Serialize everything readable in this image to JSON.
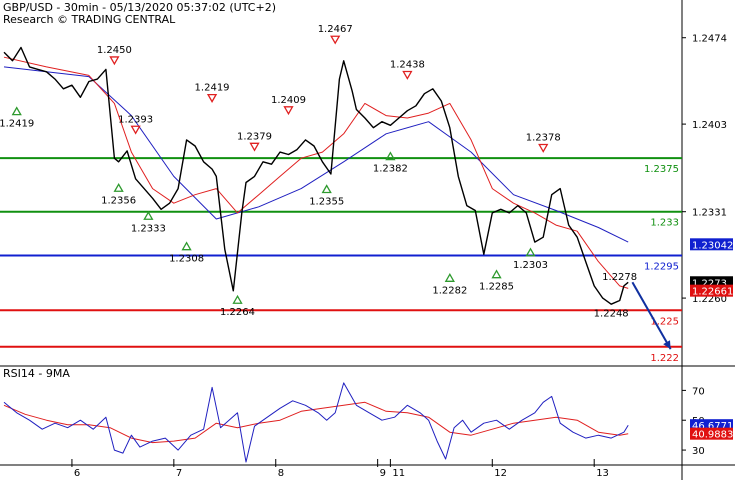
{
  "header": {
    "line1": "GBP/USD - 30min - 05/13/2020 05:37:02 (UTC+2)",
    "line2": "Research © TRADING CENTRAL"
  },
  "colors": {
    "up_arrow": "#2e9a2e",
    "down_arrow": "#e02020",
    "green_level": "#109010",
    "blue_level": "#1020d0",
    "red_level": "#e01010",
    "ma_red": "#e02020",
    "ma_blue": "#2020c0",
    "price": "#000000",
    "forecast_arrow": "#1030a0"
  },
  "chart_data": [
    {
      "type": "line",
      "title": "GBP/USD - 30min",
      "ylim": [
        1.2205,
        1.2505
      ],
      "y_ticks": [
        "1.2474",
        "1.2403",
        "1.2331",
        "1.2260"
      ],
      "y_tick_values": [
        1.2474,
        1.2403,
        1.2331,
        1.226
      ],
      "x_ticks": [
        "6",
        "7",
        "8",
        "9",
        "11",
        "12",
        "13"
      ],
      "x_tick_bars": [
        32,
        80,
        128,
        176,
        182,
        230,
        278
      ],
      "bars_total": 310,
      "series": [
        {
          "role": "price",
          "bar": [
            0,
            4,
            8,
            12,
            16,
            20,
            24,
            28,
            32,
            36,
            40,
            44,
            48,
            52,
            54,
            58,
            62,
            66,
            70,
            74,
            78,
            82,
            86,
            90,
            94,
            98,
            100,
            104,
            108,
            112,
            114,
            118,
            122,
            126,
            130,
            134,
            138,
            142,
            146,
            150,
            154,
            158,
            160,
            164,
            166,
            170,
            174,
            178,
            182,
            186,
            190,
            194,
            198,
            202,
            206,
            210,
            214,
            218,
            222,
            226,
            230,
            234,
            238,
            242,
            246,
            250,
            254,
            258,
            262,
            266,
            270,
            274,
            278,
            282,
            286,
            290,
            292,
            294
          ],
          "values": [
            1.2462,
            1.2455,
            1.2466,
            1.245,
            1.2448,
            1.2446,
            1.244,
            1.2432,
            1.2435,
            1.2425,
            1.2438,
            1.244,
            1.2448,
            1.2375,
            1.2372,
            1.2381,
            1.2358,
            1.235,
            1.2342,
            1.2333,
            1.2338,
            1.235,
            1.239,
            1.2385,
            1.2372,
            1.2366,
            1.236,
            1.23,
            1.2266,
            1.233,
            1.2355,
            1.236,
            1.2372,
            1.237,
            1.238,
            1.2378,
            1.2382,
            1.239,
            1.2385,
            1.2372,
            1.2362,
            1.244,
            1.2455,
            1.243,
            1.2415,
            1.2408,
            1.24,
            1.2405,
            1.2402,
            1.2408,
            1.2414,
            1.2418,
            1.2428,
            1.2432,
            1.2422,
            1.24,
            1.236,
            1.2336,
            1.2332,
            1.2296,
            1.233,
            1.2333,
            1.233,
            1.2336,
            1.233,
            1.2306,
            1.231,
            1.2345,
            1.235,
            1.232,
            1.231,
            1.229,
            1.227,
            1.226,
            1.2255,
            1.2258,
            1.227,
            1.2273
          ]
        },
        {
          "role": "ma-red",
          "bar": [
            0,
            20,
            40,
            52,
            60,
            70,
            80,
            90,
            100,
            110,
            120,
            130,
            140,
            150,
            160,
            170,
            180,
            190,
            200,
            210,
            220,
            230,
            240,
            250,
            260,
            270,
            280,
            290,
            294
          ],
          "values": [
            1.2458,
            1.245,
            1.2443,
            1.242,
            1.238,
            1.235,
            1.2338,
            1.2345,
            1.235,
            1.233,
            1.2345,
            1.236,
            1.2375,
            1.238,
            1.2395,
            1.242,
            1.241,
            1.2408,
            1.2412,
            1.242,
            1.239,
            1.235,
            1.2338,
            1.233,
            1.232,
            1.2315,
            1.229,
            1.227,
            1.2268
          ]
        },
        {
          "role": "ma-blue",
          "bar": [
            0,
            20,
            40,
            60,
            80,
            100,
            120,
            140,
            160,
            180,
            200,
            220,
            240,
            260,
            280,
            294
          ],
          "values": [
            1.245,
            1.2446,
            1.2442,
            1.241,
            1.236,
            1.2325,
            1.2335,
            1.235,
            1.2372,
            1.2395,
            1.2405,
            1.238,
            1.2345,
            1.2332,
            1.2318,
            1.2306
          ]
        }
      ],
      "forecast": {
        "from_bar": 296,
        "from": 1.2273,
        "to_bar": 314,
        "to": 1.2218
      },
      "levels": [
        {
          "value": 1.2375,
          "label": "1.2375",
          "kind": "green"
        },
        {
          "value": 1.2331,
          "label": "1.233",
          "kind": "green"
        },
        {
          "value": 1.2295,
          "label": "1.2295",
          "kind": "blue"
        },
        {
          "value": 1.225,
          "label": "1.225",
          "kind": "red"
        },
        {
          "value": 1.222,
          "label": "1.222",
          "kind": "red"
        }
      ],
      "tags": [
        {
          "value": 1.23042,
          "label": "1.23042",
          "color": "#1020d0"
        },
        {
          "value": 1.2273,
          "label": "1.2273",
          "color": "#000000"
        },
        {
          "value": 1.22661,
          "label": "1.22661",
          "color": "#e01010"
        }
      ],
      "annotations": [
        {
          "bar": 6,
          "value": 1.2419,
          "label": "1.2419",
          "marker": "up"
        },
        {
          "bar": 52,
          "value": 1.245,
          "label": "1.2450",
          "marker": "down"
        },
        {
          "bar": 62,
          "value": 1.2393,
          "label": "1.2393",
          "marker": "down"
        },
        {
          "bar": 54,
          "value": 1.2356,
          "label": "1.2356",
          "marker": "up"
        },
        {
          "bar": 68,
          "value": 1.2333,
          "label": "1.2333",
          "marker": "up"
        },
        {
          "bar": 86,
          "value": 1.2308,
          "label": "1.2308",
          "marker": "up"
        },
        {
          "bar": 98,
          "value": 1.2419,
          "label": "1.2419",
          "marker": "down"
        },
        {
          "bar": 110,
          "value": 1.2264,
          "label": "1.2264",
          "marker": "up"
        },
        {
          "bar": 118,
          "value": 1.2379,
          "label": "1.2379",
          "marker": "down"
        },
        {
          "bar": 134,
          "value": 1.2409,
          "label": "1.2409",
          "marker": "down"
        },
        {
          "bar": 152,
          "value": 1.2355,
          "label": "1.2355",
          "marker": "up"
        },
        {
          "bar": 156,
          "value": 1.2467,
          "label": "1.2467",
          "marker": "down"
        },
        {
          "bar": 182,
          "value": 1.2382,
          "label": "1.2382",
          "marker": "up"
        },
        {
          "bar": 190,
          "value": 1.2438,
          "label": "1.2438",
          "marker": "down"
        },
        {
          "bar": 210,
          "value": 1.2282,
          "label": "1.2282",
          "marker": "up"
        },
        {
          "bar": 232,
          "value": 1.2285,
          "label": "1.2285",
          "marker": "up"
        },
        {
          "bar": 248,
          "value": 1.2303,
          "label": "1.2303",
          "marker": "up"
        },
        {
          "bar": 254,
          "value": 1.2378,
          "label": "1.2378",
          "marker": "down"
        },
        {
          "bar": 290,
          "value": 1.2278,
          "label": "1.2278",
          "marker": "none"
        },
        {
          "bar": 286,
          "value": 1.2248,
          "label": "1.2248",
          "marker": "none"
        }
      ]
    },
    {
      "type": "line",
      "title": "RSI14 - 9MA",
      "ylim": [
        20,
        85
      ],
      "y_ticks": [
        "70",
        "50",
        "30"
      ],
      "y_tick_values": [
        70,
        50,
        30
      ],
      "tags": [
        {
          "value": 46.6771,
          "label": "46.6771",
          "color": "#1020d0"
        },
        {
          "value": 40.9883,
          "label": "40.9883",
          "color": "#e01010"
        }
      ],
      "series": [
        {
          "role": "rsi",
          "bar": [
            0,
            6,
            12,
            18,
            24,
            30,
            36,
            42,
            48,
            52,
            56,
            60,
            64,
            70,
            76,
            82,
            88,
            94,
            98,
            102,
            106,
            110,
            114,
            118,
            124,
            130,
            136,
            142,
            148,
            152,
            156,
            160,
            166,
            172,
            178,
            184,
            190,
            196,
            200,
            204,
            208,
            212,
            216,
            220,
            226,
            232,
            238,
            244,
            250,
            254,
            258,
            262,
            268,
            274,
            280,
            286,
            292,
            294
          ],
          "values": [
            62,
            55,
            50,
            44,
            48,
            45,
            50,
            44,
            52,
            30,
            28,
            40,
            32,
            36,
            38,
            30,
            40,
            44,
            72,
            45,
            50,
            55,
            22,
            46,
            52,
            58,
            63,
            60,
            55,
            50,
            55,
            75,
            60,
            55,
            50,
            52,
            60,
            55,
            50,
            36,
            24,
            45,
            50,
            42,
            48,
            50,
            44,
            50,
            55,
            62,
            66,
            48,
            42,
            38,
            40,
            38,
            42,
            46.68
          ]
        },
        {
          "role": "ma",
          "bar": [
            0,
            10,
            20,
            30,
            40,
            50,
            60,
            70,
            80,
            90,
            100,
            110,
            120,
            130,
            140,
            150,
            160,
            170,
            180,
            190,
            200,
            210,
            220,
            230,
            240,
            250,
            260,
            270,
            280,
            290,
            294
          ],
          "values": [
            60,
            54,
            50,
            47,
            47,
            45,
            38,
            35,
            36,
            38,
            48,
            45,
            48,
            50,
            56,
            58,
            60,
            62,
            56,
            55,
            52,
            42,
            40,
            44,
            48,
            50,
            52,
            50,
            42,
            40,
            40.99
          ]
        }
      ]
    }
  ]
}
